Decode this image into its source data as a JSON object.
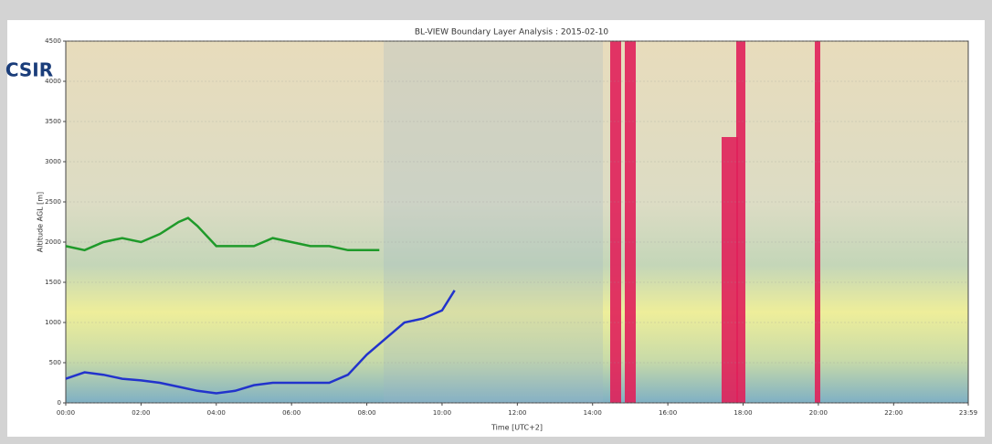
{
  "logo": "CSIR",
  "chart_data": {
    "type": "line",
    "title": "BL-VIEW Boundary Layer Analysis : 2015-02-10",
    "x_label": "Time [UTC+2]",
    "y_label": "Altitude AGL [m]",
    "xlim": [
      0,
      1439
    ],
    "xticks": [
      {
        "value": 0,
        "label": "00:00"
      },
      {
        "value": 120,
        "label": "02:00"
      },
      {
        "value": 240,
        "label": "04:00"
      },
      {
        "value": 360,
        "label": "06:00"
      },
      {
        "value": 480,
        "label": "08:00"
      },
      {
        "value": 600,
        "label": "10:00"
      },
      {
        "value": 720,
        "label": "12:00"
      },
      {
        "value": 840,
        "label": "14:00"
      },
      {
        "value": 960,
        "label": "16:00"
      },
      {
        "value": 1080,
        "label": "18:00"
      },
      {
        "value": 1200,
        "label": "20:00"
      },
      {
        "value": 1320,
        "label": "22:00"
      },
      {
        "value": 1439,
        "label": "23:59"
      }
    ],
    "ylim": [
      0,
      4500
    ],
    "yticks": [
      0,
      500,
      1000,
      1500,
      2000,
      2500,
      3000,
      3500,
      4000,
      4500
    ],
    "series": [
      {
        "color": "#1f9a2a",
        "x": [
          0,
          30,
          60,
          90,
          120,
          150,
          180,
          195,
          210,
          240,
          270,
          300,
          330,
          360,
          390,
          420,
          450,
          480,
          500
        ],
        "values": [
          1950,
          1900,
          2000,
          2050,
          2000,
          2100,
          2250,
          2300,
          2200,
          1950,
          1950,
          1950,
          2050,
          2000,
          1950,
          1950,
          1900,
          1900,
          1900
        ]
      },
      {
        "color": "#2233cc",
        "x": [
          0,
          30,
          60,
          90,
          120,
          150,
          180,
          210,
          240,
          270,
          300,
          330,
          360,
          390,
          420,
          450,
          480,
          510,
          540,
          570,
          600,
          620
        ],
        "values": [
          300,
          380,
          350,
          300,
          280,
          250,
          200,
          150,
          120,
          150,
          220,
          250,
          250,
          250,
          250,
          350,
          600,
          800,
          1000,
          1050,
          1150,
          1400
        ]
      }
    ]
  }
}
